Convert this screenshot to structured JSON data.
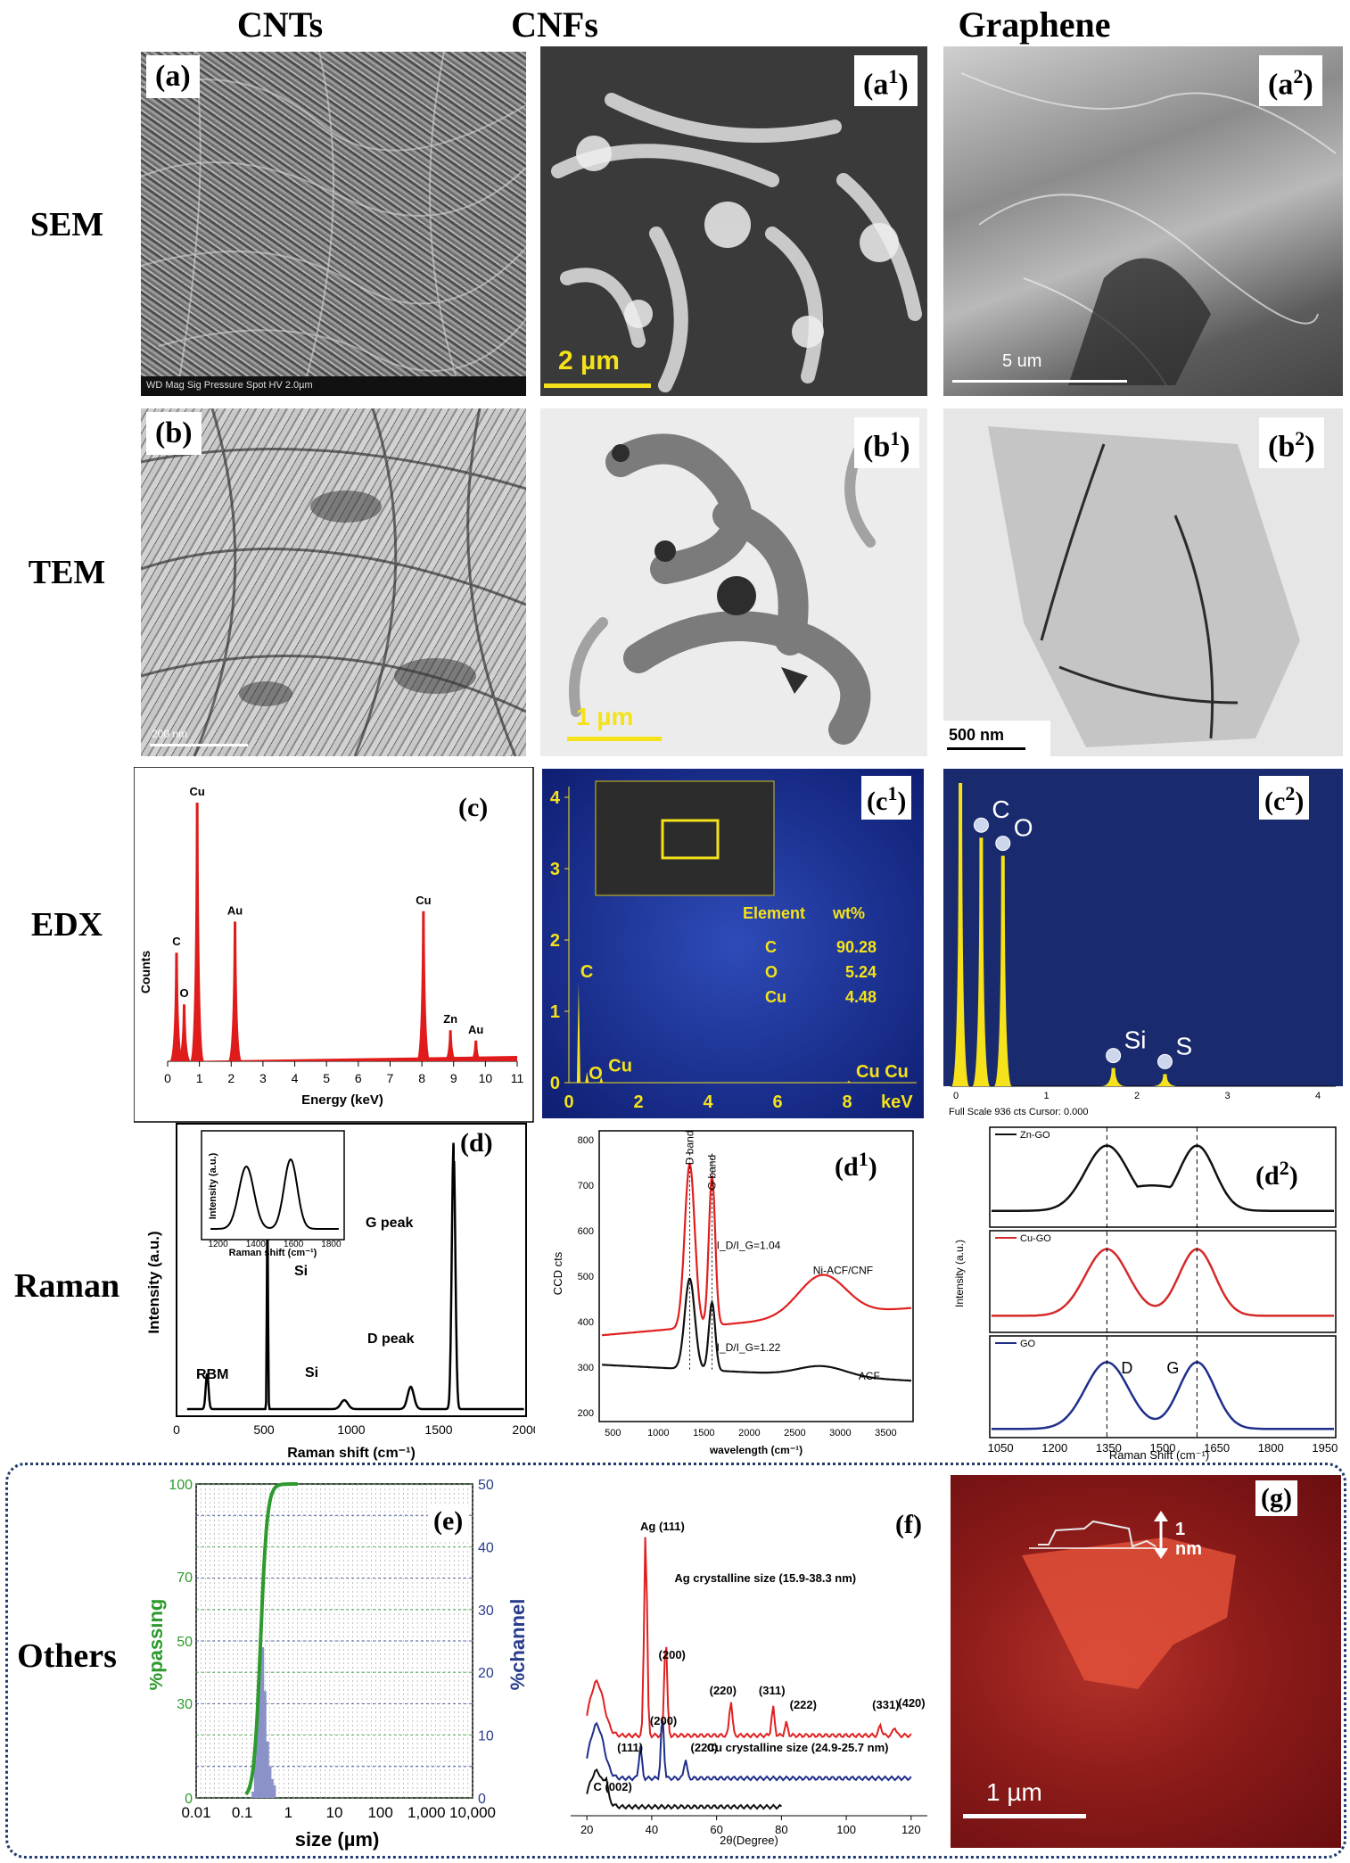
{
  "columns": {
    "cnts": "CNTs",
    "cnfs": "CNFs",
    "graphene": "Graphene"
  },
  "rows": {
    "sem": "SEM",
    "tem": "TEM",
    "edx": "EDX",
    "raman": "Raman",
    "others": "Others"
  },
  "panels": {
    "a": "(a)",
    "a1": "(a",
    "a2": "(a",
    "b": "(b)",
    "b1": "(b",
    "b2": "(b",
    "c": "(c)",
    "c1": "(c",
    "c2": "(c",
    "d": "(d)",
    "d1": "(d",
    "d2": "(d",
    "e": "(e)",
    "f": "(f)",
    "g": "(g)",
    "sup1": "1",
    "sup2": "2",
    "close": ")"
  },
  "scalebars": {
    "a1": "2 µm",
    "a2": "5 um",
    "b1": "1 µm",
    "b2": "500 nm",
    "g": "1 µm",
    "a_info": "WD  Mag  Sig Pressure Spot  HV     2.0µm",
    "b_info": "200 nm",
    "g_height": "1 nm"
  },
  "edx_c1_table": {
    "header": [
      "Element",
      "wt%"
    ],
    "rows": [
      [
        "C",
        "90.28"
      ],
      [
        "O",
        "5.24"
      ],
      [
        "Cu",
        "4.48"
      ]
    ]
  },
  "c2_footer": "Full Scale 936 cts Cursor: 0.000",
  "chart_data": [
    {
      "id": "c",
      "type": "bar",
      "xlabel": "Energy (keV)",
      "ylabel": "Counts",
      "xlim": [
        0,
        11
      ],
      "xticks": [
        0,
        1,
        2,
        3,
        4,
        5,
        6,
        7,
        8,
        9,
        10,
        11
      ],
      "peaks": [
        {
          "x": 0.28,
          "h": 0.42,
          "label": "C"
        },
        {
          "x": 0.52,
          "h": 0.22,
          "label": "O"
        },
        {
          "x": 0.93,
          "h": 1.0,
          "label": "Cu"
        },
        {
          "x": 2.12,
          "h": 0.54,
          "label": "Au"
        },
        {
          "x": 8.05,
          "h": 0.58,
          "label": "Cu"
        },
        {
          "x": 8.9,
          "h": 0.12,
          "label": "Zn"
        },
        {
          "x": 9.7,
          "h": 0.08,
          "label": "Au"
        }
      ],
      "color": "#e01b1b"
    },
    {
      "id": "c1",
      "type": "bar",
      "xlabel": "keV",
      "ylim": [
        0,
        4
      ],
      "xticks": [
        0,
        2,
        4,
        6,
        8
      ],
      "yticks": [
        0,
        1,
        2,
        3,
        4
      ],
      "peaks": [
        {
          "x": 0.28,
          "h": 1.4,
          "label": "C"
        },
        {
          "x": 0.52,
          "h": 0.15,
          "label": "O"
        },
        {
          "x": 0.93,
          "h": 0.08,
          "label": "Cu"
        },
        {
          "x": 8.05,
          "h": 0.03,
          "label": "Cu Cu"
        }
      ],
      "color": "#f5e21a"
    },
    {
      "id": "c2",
      "type": "bar",
      "xlim": [
        0,
        4
      ],
      "xticks": [
        0,
        1,
        2,
        3,
        4
      ],
      "peaks": [
        {
          "x": 0.05,
          "h": 1.0,
          "label": ""
        },
        {
          "x": 0.28,
          "h": 0.82,
          "label": "C"
        },
        {
          "x": 0.52,
          "h": 0.76,
          "label": "O"
        },
        {
          "x": 1.74,
          "h": 0.06,
          "label": "Si"
        },
        {
          "x": 2.31,
          "h": 0.04,
          "label": "S"
        }
      ],
      "color": "#f5e21a"
    },
    {
      "id": "d",
      "type": "line",
      "xlabel": "Raman shift (cm⁻¹)",
      "ylabel": "Intensity (a.u.)",
      "xlim": [
        0,
        2000
      ],
      "xticks": [
        0,
        500,
        1000,
        1500,
        2000
      ],
      "annotations": [
        "RBM",
        "Si",
        "Si",
        "D peak",
        "G peak"
      ],
      "inset": {
        "xlabel": "Raman shift (cm⁻¹)",
        "ylabel": "Intensity (a.u.)",
        "xticks": [
          1200,
          1400,
          1600,
          1800
        ]
      }
    },
    {
      "id": "d1",
      "type": "line",
      "xlabel": "wavelength (cm⁻¹)",
      "ylabel": "CCD cts",
      "xlim": [
        350,
        3800
      ],
      "ylim": [
        180,
        820
      ],
      "xticks": [
        500,
        1000,
        1500,
        2000,
        2500,
        3000,
        3500
      ],
      "yticks": [
        200,
        300,
        400,
        500,
        600,
        700,
        800
      ],
      "series": [
        {
          "name": "Ni-ACF/CNF",
          "ratio": "I_D/I_G=1.04"
        },
        {
          "name": "ACF",
          "ratio": "I_D/I_G=1.22"
        }
      ],
      "band_labels": [
        "D band",
        "G band"
      ]
    },
    {
      "id": "d2",
      "type": "line",
      "xlabel": "Raman Shift (cm⁻¹)",
      "ylabel": "Intensity (a.u.)",
      "xlim": [
        1020,
        1980
      ],
      "xticks": [
        1050,
        1200,
        1350,
        1500,
        1650,
        1800,
        1950
      ],
      "series": [
        {
          "name": "Zn-GO"
        },
        {
          "name": "Cu-GO"
        },
        {
          "name": "GO"
        }
      ],
      "band_labels": [
        "D",
        "G"
      ]
    },
    {
      "id": "e",
      "type": "bar",
      "xlabel": "size (µm)",
      "ylabel": "%passing",
      "ylabel2": "%channel",
      "xticks": [
        "0.01",
        "0.1",
        "1",
        "10",
        "100",
        "1,000",
        "10,000"
      ],
      "yticks": [
        "0",
        "30",
        "50",
        "70",
        "100"
      ],
      "yticks2": [
        "0",
        "10",
        "20",
        "30",
        "40",
        "50"
      ]
    },
    {
      "id": "f",
      "type": "line",
      "xlabel": "2θ(Degree)",
      "xlim": [
        15,
        125
      ],
      "xticks": [
        20,
        40,
        60,
        80,
        100,
        120
      ],
      "peak_labels": [
        "Ag (111)",
        "(200)",
        "(220)",
        "(311)",
        "(222)",
        "(331)",
        "(420)",
        "(111)",
        "(200)",
        "(220)",
        "C (002)"
      ],
      "series": [
        {
          "name": "Ag crystalline size (15.9-38.3 nm)"
        },
        {
          "name": "Cu crystalline size (24.9-25.7 nm)"
        }
      ]
    }
  ]
}
